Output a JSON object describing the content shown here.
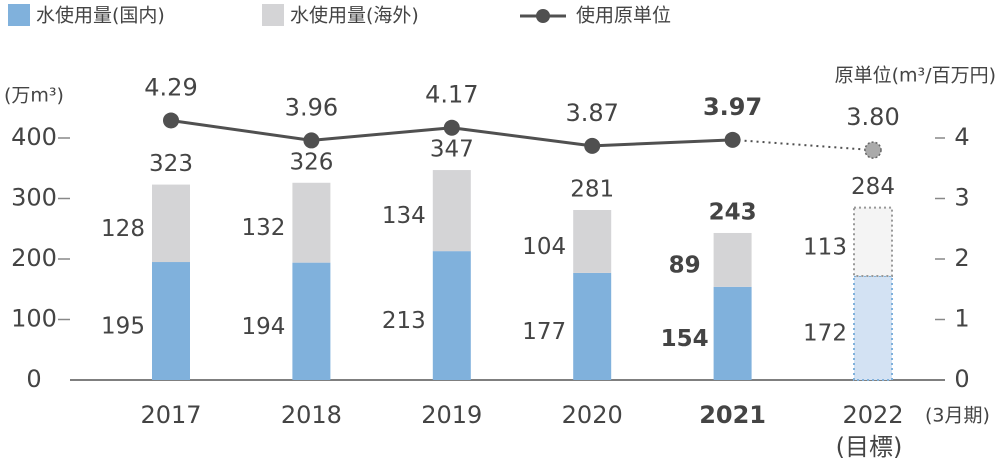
{
  "chart_data": {
    "type": "bar_line",
    "categories": [
      "2017",
      "2018",
      "2019",
      "2020",
      "2021",
      "2022"
    ],
    "category_sublabels": [
      null,
      null,
      null,
      null,
      null,
      "(目標)"
    ],
    "x_annotation": "(3月期)",
    "emphasis": [
      false,
      false,
      false,
      false,
      true,
      false
    ],
    "target": [
      false,
      false,
      false,
      false,
      false,
      true
    ],
    "y_label": "(万m³)",
    "y2_label": "原単位(m³/百万円)",
    "ylim": [
      0,
      400
    ],
    "yticks": [
      0,
      100,
      200,
      300,
      400
    ],
    "y2lim": [
      0,
      4
    ],
    "y2ticks": [
      0,
      1,
      2,
      3,
      4
    ],
    "series": [
      {
        "name": "水使用量(国内)",
        "color": "#80b1dc",
        "values": [
          195,
          194,
          213,
          177,
          154,
          172
        ]
      },
      {
        "name": "水使用量(海外)",
        "color": "#d4d4d6",
        "values": [
          128,
          132,
          134,
          104,
          89,
          113
        ]
      },
      {
        "name": "使用原単位",
        "color": "#505050",
        "axis": "y2",
        "values": [
          4.29,
          3.96,
          4.17,
          3.87,
          3.97,
          3.8
        ],
        "value_labels": [
          "4.29",
          "3.96",
          "4.17",
          "3.87",
          "3.97",
          "3.80"
        ]
      }
    ],
    "totals": [
      323,
      326,
      347,
      281,
      243,
      284
    ]
  }
}
